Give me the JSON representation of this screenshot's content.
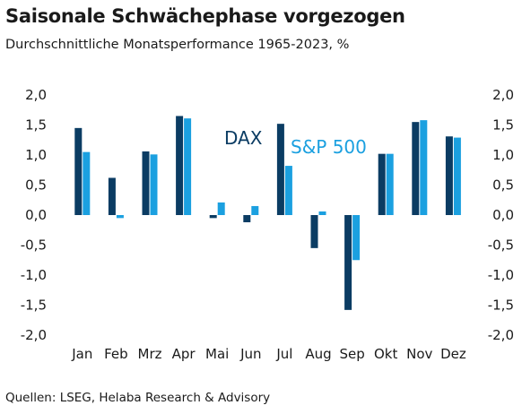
{
  "title": "Saisonale Schwächephase vorgezogen",
  "subtitle": "Durchschnittliche Monatsperformance 1965-2023, %",
  "source": "Quellen: LSEG, Helaba Research & Advisory",
  "colors": {
    "dax": "#0b3c63",
    "sp500": "#1ba0e0"
  },
  "chart_data": {
    "type": "bar",
    "categories": [
      "Jan",
      "Feb",
      "Mrz",
      "Apr",
      "Mai",
      "Jun",
      "Jul",
      "Aug",
      "Sep",
      "Okt",
      "Nov",
      "Dez"
    ],
    "series": [
      {
        "name": "DAX",
        "values": [
          1.45,
          0.62,
          1.06,
          1.65,
          -0.05,
          -0.12,
          1.52,
          -0.55,
          -1.58,
          1.02,
          1.55,
          1.31
        ]
      },
      {
        "name": "S&P 500",
        "values": [
          1.05,
          -0.05,
          1.01,
          1.61,
          0.21,
          0.15,
          0.82,
          0.06,
          -0.75,
          1.02,
          1.58,
          1.29
        ]
      }
    ],
    "ylim": [
      -2.0,
      2.0
    ],
    "yticks": [
      "2,0",
      "1,5",
      "1,0",
      "0,5",
      "0,0",
      "-0,5",
      "-1,0",
      "-1,5",
      "-2,0"
    ],
    "ytick_values": [
      2.0,
      1.5,
      1.0,
      0.5,
      0.0,
      -0.5,
      -1.0,
      -1.5,
      -2.0
    ],
    "legend": [
      "DAX",
      "S&P 500"
    ],
    "grid": false
  }
}
